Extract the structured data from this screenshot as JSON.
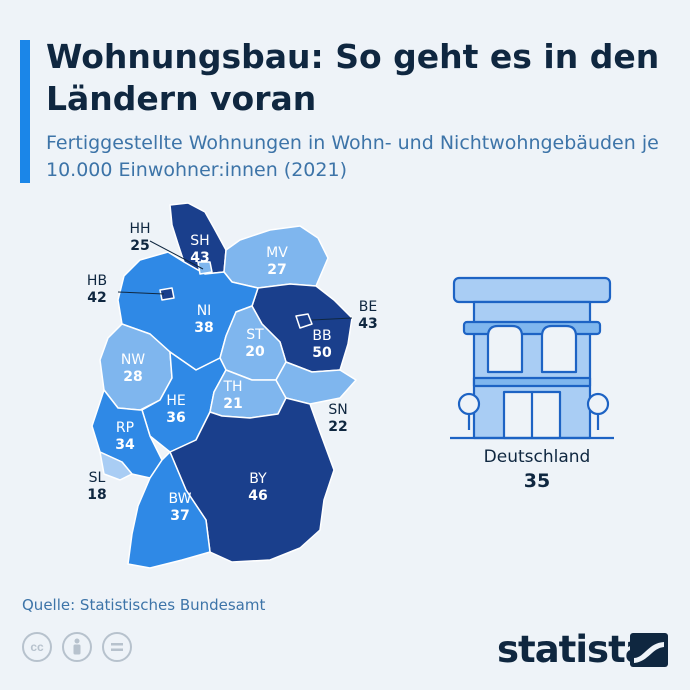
{
  "header": {
    "title": "Wohnungsbau: So geht es in den Ländern voran",
    "subtitle": "Fertiggestellte Wohnungen in Wohn- und Nichtwohngebäuden je 10.000 Einwohner:innen (2021)"
  },
  "legend_colors": {
    "darkest": "#1a3f8c",
    "dark": "#1d63c4",
    "medium": "#2f89e6",
    "light": "#7fb6ee",
    "lightest": "#a9cdf4"
  },
  "states": [
    {
      "code": "SH",
      "value": 43,
      "color": "#1a3f8c"
    },
    {
      "code": "HH",
      "value": 25,
      "color": "#7fb6ee"
    },
    {
      "code": "MV",
      "value": 27,
      "color": "#7fb6ee"
    },
    {
      "code": "HB",
      "value": 42,
      "color": "#1a3f8c"
    },
    {
      "code": "NI",
      "value": 38,
      "color": "#2f89e6"
    },
    {
      "code": "BE",
      "value": 43,
      "color": "#1a3f8c"
    },
    {
      "code": "BB",
      "value": 50,
      "color": "#1a3f8c"
    },
    {
      "code": "ST",
      "value": 20,
      "color": "#7fb6ee"
    },
    {
      "code": "NW",
      "value": 28,
      "color": "#7fb6ee"
    },
    {
      "code": "HE",
      "value": 36,
      "color": "#2f89e6"
    },
    {
      "code": "TH",
      "value": 21,
      "color": "#7fb6ee"
    },
    {
      "code": "SN",
      "value": 22,
      "color": "#7fb6ee"
    },
    {
      "code": "RP",
      "value": 34,
      "color": "#2f89e6"
    },
    {
      "code": "SL",
      "value": 18,
      "color": "#a9cdf4"
    },
    {
      "code": "BW",
      "value": 37,
      "color": "#2f89e6"
    },
    {
      "code": "BY",
      "value": 46,
      "color": "#1a3f8c"
    }
  ],
  "national": {
    "name": "Deutschland",
    "value": "35",
    "icon": "building-icon"
  },
  "footer": {
    "source": "Quelle: Statistisches Bundesamt",
    "license_icons": [
      "cc-icon",
      "attribution-icon",
      "no-derivatives-icon"
    ],
    "brand": "statista"
  }
}
